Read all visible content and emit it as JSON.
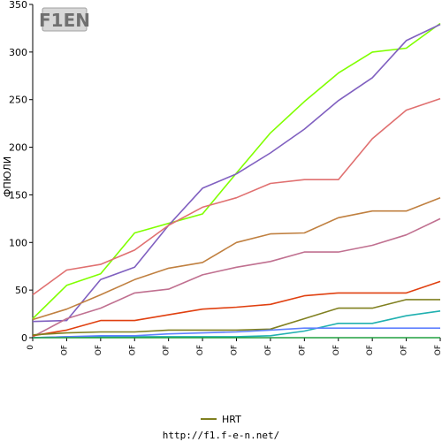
{
  "chart_data": {
    "type": "line",
    "ylabel": "ФПЮЛИ",
    "ylim": [
      0,
      350
    ],
    "yticks": [
      0,
      50,
      100,
      150,
      200,
      250,
      300,
      350
    ],
    "x_tick_labels": [
      "0",
      "OF",
      "OF",
      "OF",
      "OF",
      "OF",
      "OF",
      "OF",
      "OF",
      "OF",
      "OF",
      "OF",
      "OF",
      "OF"
    ],
    "grid": false,
    "legend": {
      "placement": "bottom-center",
      "entries": [
        {
          "label": "HRT",
          "color": "#808020"
        }
      ]
    },
    "footer_url": "http://f1.f-e-n.net/",
    "logo_text": "F1EN",
    "series": [
      {
        "color": "#80ff00",
        "values": [
          20,
          55,
          67,
          110,
          120,
          130,
          173,
          215,
          248,
          278,
          300,
          304,
          330
        ]
      },
      {
        "color": "#8060c0",
        "values": [
          17,
          18,
          61,
          74,
          118,
          157,
          172,
          194,
          219,
          249,
          273,
          312,
          329
        ]
      },
      {
        "color": "#e07070",
        "values": [
          45,
          71,
          77,
          92,
          118,
          137,
          147,
          162,
          166,
          166,
          209,
          239,
          251
        ]
      },
      {
        "color": "#c08040",
        "values": [
          19,
          30,
          45,
          61,
          73,
          79,
          100,
          109,
          110,
          126,
          133,
          133,
          147
        ]
      },
      {
        "color": "#c07090",
        "values": [
          1,
          20,
          31,
          47,
          51,
          66,
          74,
          80,
          90,
          90,
          97,
          108,
          125
        ]
      },
      {
        "color": "#e04010",
        "values": [
          2,
          8,
          18,
          18,
          24,
          30,
          32,
          35,
          44,
          47,
          47,
          47,
          59
        ]
      },
      {
        "color": "#808020",
        "values": [
          3,
          5,
          6,
          6,
          8,
          8,
          8,
          9,
          20,
          31,
          31,
          40,
          40
        ]
      },
      {
        "color": "#20b0b0",
        "values": [
          0,
          1,
          1,
          1,
          1,
          1,
          1,
          2,
          7,
          15,
          15,
          23,
          28
        ]
      },
      {
        "color": "#6080ff",
        "values": [
          0,
          1,
          2,
          2,
          4,
          5,
          6,
          8,
          10,
          10,
          10,
          10,
          10
        ]
      },
      {
        "color": "#20a040",
        "values": [
          0,
          0,
          0,
          0,
          0,
          0,
          0,
          0,
          0,
          0,
          0,
          0,
          0
        ]
      }
    ]
  }
}
